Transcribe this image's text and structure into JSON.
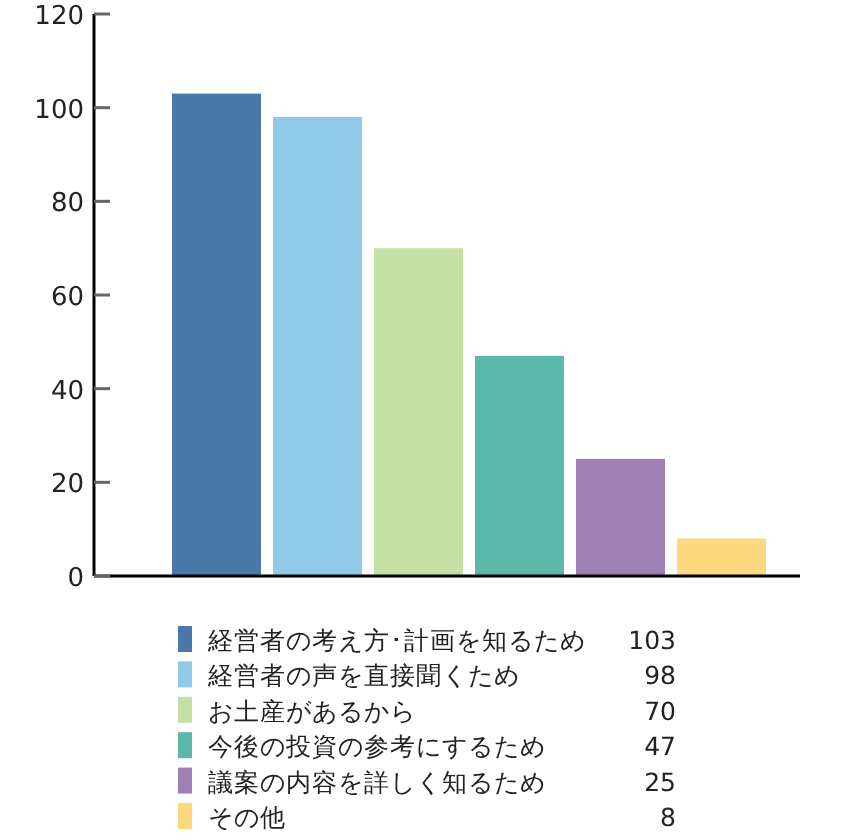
{
  "chart_data": {
    "type": "bar",
    "categories": [
      null,
      null,
      null,
      null,
      null,
      null
    ],
    "series": [
      {
        "name": "経営者の考え方･計画を知るため",
        "color": "#4a78ab",
        "values": [
          103,
          null,
          null,
          null,
          null,
          null
        ]
      },
      {
        "name": "経営者の声を直接聞くため",
        "color": "#91c9e9",
        "values": [
          null,
          98,
          null,
          null,
          null,
          null
        ]
      },
      {
        "name": "お土産があるから",
        "color": "#c5e0a5",
        "values": [
          null,
          null,
          70,
          null,
          null,
          null
        ]
      },
      {
        "name": "今後の投資の参考にするため",
        "color": "#5cb8ab",
        "values": [
          null,
          null,
          null,
          47,
          null,
          null
        ]
      },
      {
        "name": "議案の内容を詳しく知るため",
        "color": "#9e80b4",
        "values": [
          null,
          null,
          null,
          null,
          25,
          null
        ]
      },
      {
        "name": "その他",
        "color": "#fcd97e",
        "values": [
          null,
          null,
          null,
          null,
          null,
          8
        ]
      }
    ],
    "ylim": [
      0,
      120
    ],
    "yticks": [
      0,
      20,
      40,
      60,
      80,
      100,
      120
    ],
    "tick_labels": "y",
    "legend": "bottom",
    "grid": false,
    "stacked": true,
    "annotations": [
      "103",
      "98",
      "70",
      "47",
      "25",
      "8"
    ]
  }
}
